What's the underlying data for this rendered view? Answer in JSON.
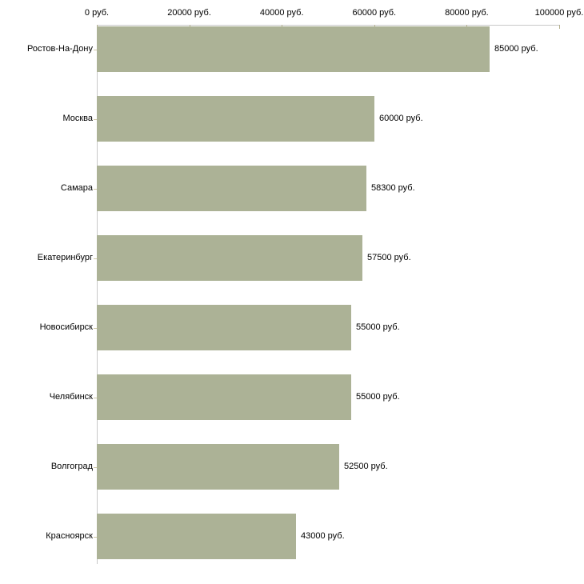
{
  "chart_data": {
    "type": "bar",
    "orientation": "horizontal",
    "title": "",
    "xlabel": "",
    "ylabel": "",
    "categories": [
      "Ростов-На-Дону",
      "Москва",
      "Самара",
      "Екатеринбург",
      "Новосибирск",
      "Челябинск",
      "Волгоград",
      "Красноярск"
    ],
    "values": [
      85000,
      60000,
      58300,
      57500,
      55000,
      55000,
      52500,
      43000
    ],
    "value_labels": [
      "85000 руб.",
      "60000 руб.",
      "58300 руб.",
      "57500 руб.",
      "55000 руб.",
      "55000 руб.",
      "52500 руб.",
      "43000 руб."
    ],
    "x_axis": {
      "position": "top",
      "tick_values": [
        0,
        20000,
        40000,
        60000,
        80000,
        100000
      ],
      "tick_labels": [
        "0 руб.",
        "20000 руб.",
        "40000 руб.",
        "60000 руб.",
        "80000 руб.",
        "100000 руб."
      ]
    },
    "xlim": [
      0,
      100000
    ],
    "grid": false,
    "legend": false,
    "colors": {
      "bar": "#acb296",
      "axis_line": "#c9c9c9",
      "x_tick": "#b3af8c",
      "category_tick": "#cfc7a6",
      "text": "#000000",
      "background": "#ffffff"
    }
  }
}
